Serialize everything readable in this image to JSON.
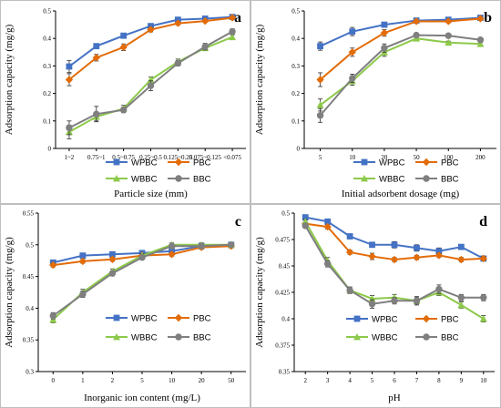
{
  "chart_data": [
    {
      "panel": "a",
      "type": "line",
      "xlabel": "Particle size (mm)",
      "ylabel": "Adsorption capacity (mg/g)",
      "categories": [
        "1~2",
        "0.75~1",
        "0.5~0.75",
        "0.25~0.5",
        "0.125~0.25",
        "0.075~0.125",
        "<0.075"
      ],
      "ylim": [
        0,
        0.5
      ],
      "yticks": [
        "0",
        "0.1",
        "0.2",
        "0.3",
        "0.4",
        "0.5"
      ],
      "series": [
        {
          "name": "WPBC",
          "values": [
            0.298,
            0.372,
            0.41,
            0.445,
            0.468,
            0.472,
            0.478
          ],
          "errors": [
            0.022,
            0.008,
            0.008,
            0.006,
            0.005,
            0.005,
            0.004
          ]
        },
        {
          "name": "PBC",
          "values": [
            0.25,
            0.33,
            0.368,
            0.432,
            0.455,
            0.463,
            0.475
          ],
          "errors": [
            0.022,
            0.012,
            0.012,
            0.008,
            0.006,
            0.005,
            0.004
          ]
        },
        {
          "name": "WBBC",
          "values": [
            0.06,
            0.115,
            0.145,
            0.25,
            0.315,
            0.365,
            0.405
          ],
          "errors": [
            0.025,
            0.015,
            0.012,
            0.01,
            0.01,
            0.008,
            0.008
          ]
        },
        {
          "name": "BBC",
          "values": [
            0.075,
            0.125,
            0.14,
            0.228,
            0.31,
            0.37,
            0.425
          ],
          "errors": [
            0.025,
            0.028,
            0.01,
            0.018,
            0.01,
            0.012,
            0.01
          ]
        }
      ],
      "legend": [
        "WPBC",
        "PBC",
        "WBBC",
        "BBC"
      ]
    },
    {
      "panel": "b",
      "type": "line",
      "xlabel": "Initial adsorbent dosage (mg)",
      "ylabel": "Adsorption capacity (mg/g)",
      "categories": [
        "5",
        "10",
        "20",
        "50",
        "100",
        "200"
      ],
      "ylim": [
        0,
        0.5
      ],
      "yticks": [
        "0",
        "0.1",
        "0.2",
        "0.3",
        "0.4",
        "0.5"
      ],
      "series": [
        {
          "name": "WPBC",
          "values": [
            0.372,
            0.425,
            0.45,
            0.465,
            0.468,
            0.475
          ],
          "errors": [
            0.015,
            0.015,
            0.006,
            0.005,
            0.005,
            0.005
          ]
        },
        {
          "name": "PBC",
          "values": [
            0.25,
            0.35,
            0.42,
            0.462,
            0.462,
            0.472
          ],
          "errors": [
            0.025,
            0.015,
            0.012,
            0.005,
            0.005,
            0.004
          ]
        },
        {
          "name": "WBBC",
          "values": [
            0.158,
            0.245,
            0.35,
            0.4,
            0.385,
            0.38
          ],
          "errors": [
            0.022,
            0.015,
            0.015,
            0.006,
            0.005,
            0.005
          ]
        },
        {
          "name": "BBC",
          "values": [
            0.12,
            0.255,
            0.365,
            0.412,
            0.41,
            0.395
          ],
          "errors": [
            0.025,
            0.015,
            0.015,
            0.006,
            0.005,
            0.005
          ]
        }
      ],
      "legend": [
        "WPBC",
        "PBC",
        "WBBC",
        "BBC"
      ]
    },
    {
      "panel": "c",
      "type": "line",
      "xlabel": "Inorganic ion content (mg/L)",
      "ylabel": "Adsorption capacity (mg/g)",
      "categories": [
        "0",
        "1",
        "2",
        "5",
        "10",
        "20",
        "50"
      ],
      "ylim": [
        0.3,
        0.55
      ],
      "yticks": [
        "0.3",
        "0.35",
        "0.4",
        "0.45",
        "0.5",
        "0.55"
      ],
      "series": [
        {
          "name": "WPBC",
          "values": [
            0.472,
            0.483,
            0.485,
            0.487,
            0.49,
            0.498,
            0.5
          ],
          "errors": [
            0.003,
            0.003,
            0.003,
            0.003,
            0.003,
            0.003,
            0.003
          ]
        },
        {
          "name": "PBC",
          "values": [
            0.468,
            0.474,
            0.477,
            0.483,
            0.485,
            0.496,
            0.498
          ],
          "errors": [
            0.003,
            0.003,
            0.003,
            0.003,
            0.003,
            0.003,
            0.003
          ]
        },
        {
          "name": "WBBC",
          "values": [
            0.382,
            0.425,
            0.458,
            0.483,
            0.5,
            0.5,
            0.5
          ],
          "errors": [
            0.005,
            0.005,
            0.004,
            0.003,
            0.003,
            0.003,
            0.003
          ]
        },
        {
          "name": "BBC",
          "values": [
            0.388,
            0.422,
            0.455,
            0.48,
            0.498,
            0.498,
            0.5
          ],
          "errors": [
            0.005,
            0.005,
            0.004,
            0.003,
            0.003,
            0.003,
            0.003
          ]
        }
      ],
      "legend": [
        "WPBC",
        "PBC",
        "WBBC",
        "BBC"
      ]
    },
    {
      "panel": "d",
      "type": "line",
      "xlabel": "pH",
      "ylabel": "Adsorption capacity (mg/g)",
      "categories": [
        "2",
        "3",
        "4",
        "5",
        "6",
        "7",
        "8",
        "9",
        "10"
      ],
      "ylim": [
        0.35,
        0.5
      ],
      "yticks": [
        "0.35",
        "0.375",
        "0.4",
        "0.425",
        "0.45",
        "0.475",
        "0.5"
      ],
      "series": [
        {
          "name": "WPBC",
          "values": [
            0.496,
            0.492,
            0.478,
            0.47,
            0.47,
            0.467,
            0.464,
            0.468,
            0.457
          ],
          "errors": [
            0.002,
            0.002,
            0.002,
            0.002,
            0.003,
            0.003,
            0.003,
            0.002,
            0.002
          ]
        },
        {
          "name": "PBC",
          "values": [
            0.49,
            0.487,
            0.463,
            0.459,
            0.456,
            0.458,
            0.46,
            0.456,
            0.457
          ],
          "errors": [
            0.002,
            0.002,
            0.002,
            0.003,
            0.002,
            0.002,
            0.002,
            0.002,
            0.002
          ]
        },
        {
          "name": "WBBC",
          "values": [
            0.492,
            0.455,
            0.427,
            0.419,
            0.42,
            0.417,
            0.425,
            0.413,
            0.4
          ],
          "errors": [
            0.002,
            0.003,
            0.003,
            0.003,
            0.003,
            0.003,
            0.003,
            0.003,
            0.003
          ]
        },
        {
          "name": "BBC",
          "values": [
            0.488,
            0.452,
            0.427,
            0.414,
            0.417,
            0.417,
            0.428,
            0.42,
            0.42
          ],
          "errors": [
            0.002,
            0.003,
            0.003,
            0.004,
            0.003,
            0.004,
            0.004,
            0.003,
            0.003
          ]
        }
      ],
      "legend": [
        "WPBC",
        "PBC",
        "WBBC",
        "BBC"
      ]
    }
  ],
  "colors": {
    "WPBC": "#4472c4",
    "PBC": "#e36c09",
    "WBBC": "#8dc94a",
    "BBC": "#7f7f7f",
    "error_bar": "#404040"
  },
  "markers": {
    "WPBC": "square",
    "PBC": "diamond",
    "WBBC": "triangle",
    "BBC": "circle"
  }
}
